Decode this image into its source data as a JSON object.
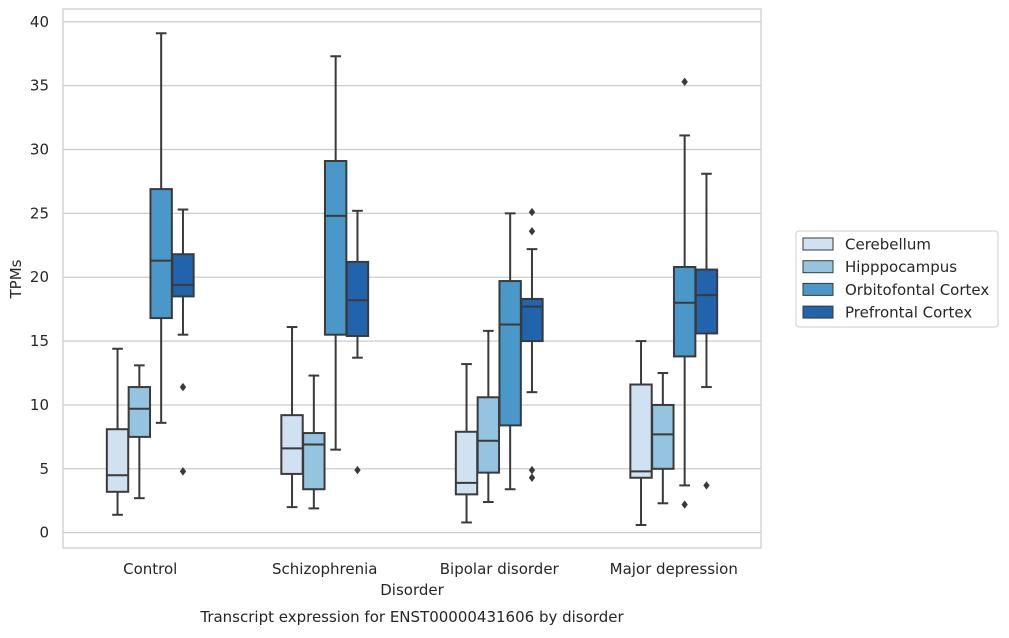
{
  "chart_data": {
    "type": "boxplot",
    "title": "",
    "caption": "Transcript expression for ENST00000431606 by disorder",
    "xlabel": "Disorder",
    "ylabel": "TPMs",
    "ylim": [
      -1.2,
      41
    ],
    "yticks": [
      0,
      5,
      10,
      15,
      20,
      25,
      30,
      35,
      40
    ],
    "grid": "horizontal",
    "legend_position": "right",
    "categories": [
      "Control",
      "Schizophrenia",
      "Bipolar disorder",
      "Major depression"
    ],
    "series": [
      {
        "name": "Cerebellum",
        "color": "#d0e1f2",
        "boxes": [
          {
            "whislo": 1.4,
            "q1": 3.2,
            "med": 4.5,
            "q3": 8.1,
            "whishi": 14.4,
            "fliers": []
          },
          {
            "whislo": 2.0,
            "q1": 4.6,
            "med": 6.6,
            "q3": 9.2,
            "whishi": 16.1,
            "fliers": []
          },
          {
            "whislo": 0.8,
            "q1": 3.0,
            "med": 3.9,
            "q3": 7.9,
            "whishi": 13.2,
            "fliers": []
          },
          {
            "whislo": 0.6,
            "q1": 4.3,
            "med": 4.8,
            "q3": 11.6,
            "whishi": 15.0,
            "fliers": []
          }
        ]
      },
      {
        "name": "Hipppocampus",
        "color": "#94c4df",
        "boxes": [
          {
            "whislo": 2.7,
            "q1": 7.5,
            "med": 9.7,
            "q3": 11.4,
            "whishi": 13.1,
            "fliers": []
          },
          {
            "whislo": 1.9,
            "q1": 3.4,
            "med": 6.9,
            "q3": 7.8,
            "whishi": 12.3,
            "fliers": []
          },
          {
            "whislo": 2.4,
            "q1": 4.7,
            "med": 7.2,
            "q3": 10.6,
            "whishi": 15.8,
            "fliers": []
          },
          {
            "whislo": 2.3,
            "q1": 5.0,
            "med": 7.7,
            "q3": 10.0,
            "whishi": 12.5,
            "fliers": []
          }
        ]
      },
      {
        "name": "Orbitofontal Cortex",
        "color": "#4a98c9",
        "boxes": [
          {
            "whislo": 8.6,
            "q1": 16.8,
            "med": 21.3,
            "q3": 26.9,
            "whishi": 39.1,
            "fliers": []
          },
          {
            "whislo": 6.5,
            "q1": 15.5,
            "med": 24.8,
            "q3": 29.1,
            "whishi": 37.3,
            "fliers": []
          },
          {
            "whislo": 3.4,
            "q1": 8.4,
            "med": 16.3,
            "q3": 19.7,
            "whishi": 25.0,
            "fliers": []
          },
          {
            "whislo": 3.7,
            "q1": 13.8,
            "med": 18.0,
            "q3": 20.8,
            "whishi": 31.1,
            "fliers": [
              2.2,
              35.3
            ]
          }
        ]
      },
      {
        "name": "Prefrontal Cortex",
        "color": "#2164ab",
        "boxes": [
          {
            "whislo": 15.5,
            "q1": 18.5,
            "med": 19.4,
            "q3": 21.8,
            "whishi": 25.3,
            "fliers": [
              4.8,
              11.4
            ]
          },
          {
            "whislo": 13.7,
            "q1": 15.4,
            "med": 18.2,
            "q3": 21.2,
            "whishi": 25.2,
            "fliers": [
              4.9
            ]
          },
          {
            "whislo": 11.0,
            "q1": 15.0,
            "med": 17.7,
            "q3": 18.3,
            "whishi": 22.2,
            "fliers": [
              4.3,
              4.9,
              23.6,
              25.1
            ]
          },
          {
            "whislo": 11.4,
            "q1": 15.6,
            "med": 18.6,
            "q3": 20.6,
            "whishi": 28.1,
            "fliers": [
              3.7
            ]
          }
        ]
      }
    ]
  },
  "colors": {
    "background": "#ffffff",
    "grid": "#cccccc",
    "spine": "#cccccc",
    "line": "#3a3a3a",
    "text": "#262626"
  }
}
